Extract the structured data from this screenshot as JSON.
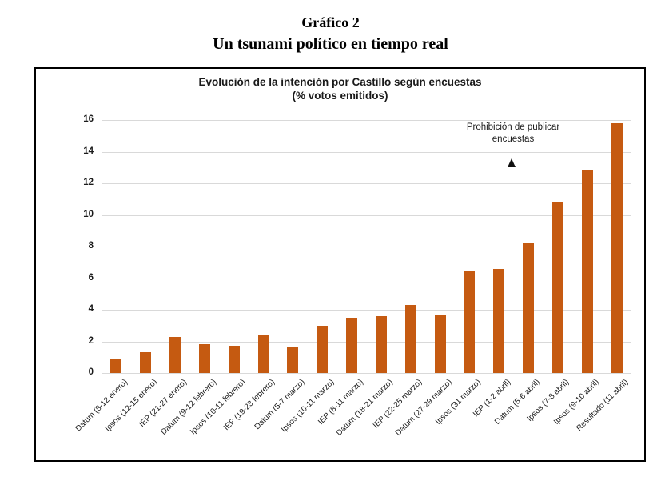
{
  "header": {
    "kicker": "Gráfico 2",
    "title": "Un tsunami político en tiempo real"
  },
  "chart_data": {
    "type": "bar",
    "title": "Evolución de la intención por Castillo según encuestas",
    "subtitle": "(% votos emitidos)",
    "categories": [
      "Datum (8-12 enero)",
      "Ipsos (12-15 enero)",
      "IEP (21-27 enero)",
      "Datum (9-12 febrero)",
      "Ipsos (10-11 febrero)",
      "IEP (19-23 febrero)",
      "Datum (5-7 marzo)",
      "Ipsos (10-11 marzo)",
      "IEP (8-11 marzo)",
      "Datum (18-21 marzo)",
      "IEP (22-25 marzo)",
      "Datum (27-29 marzo)",
      "Ipsos (31 marzo)",
      "IEP (1-2 abril)",
      "Datum (5-6 abril)",
      "Ipsos (7-8 abril)",
      "Ipsos (9-10 abril)",
      "Resultado (11 abril)"
    ],
    "values": [
      0.9,
      1.3,
      2.3,
      1.8,
      1.7,
      2.4,
      1.6,
      3.0,
      3.5,
      3.6,
      4.3,
      3.7,
      6.5,
      6.6,
      8.2,
      10.8,
      12.8,
      15.8
    ],
    "xlabel": "",
    "ylabel": "",
    "ylim": [
      0,
      16
    ],
    "ytick_step": 2,
    "grid": true,
    "legend": false,
    "bar_color": "#C55A11",
    "gridline_color": "#D9D9D9",
    "annotation": {
      "text": "Prohibición de publicar encuestas",
      "arrow_between_categories": [
        "IEP (1-2 abril)",
        "Datum (5-6 abril)"
      ],
      "arrow_direction": "up"
    }
  }
}
